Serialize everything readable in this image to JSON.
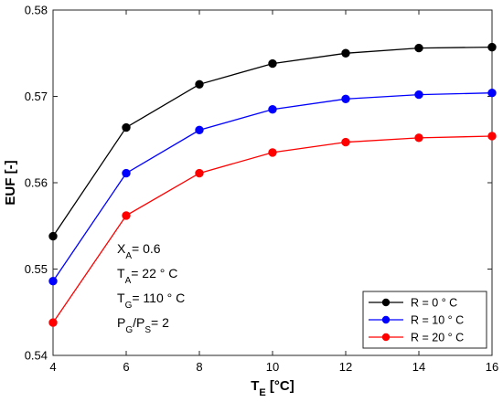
{
  "chart_data": {
    "type": "line",
    "x": [
      4,
      6,
      8,
      10,
      12,
      14,
      16
    ],
    "xlim": [
      4,
      16
    ],
    "ylim": [
      0.54,
      0.58
    ],
    "xticks": [
      "4",
      "6",
      "8",
      "10",
      "12",
      "14",
      "16"
    ],
    "yticks": [
      "0.54",
      "0.55",
      "0.56",
      "0.57",
      "0.58"
    ],
    "xlabel": {
      "main": "T",
      "sub": "E",
      "rest": " [°C]"
    },
    "ylabel": "EUF [-]",
    "grid": false,
    "legend_position": "bottom-right",
    "series": [
      {
        "name": "R = 0 ° C",
        "color": "#000000",
        "values": [
          0.5538,
          0.5664,
          0.5714,
          0.5738,
          0.575,
          0.5756,
          0.5757
        ]
      },
      {
        "name": "R = 10 ° C",
        "color": "#0000ff",
        "values": [
          0.5486,
          0.5611,
          0.5661,
          0.5685,
          0.5697,
          0.5702,
          0.5704
        ]
      },
      {
        "name": "R = 20 ° C",
        "color": "#ff0000",
        "values": [
          0.5438,
          0.5562,
          0.5611,
          0.5635,
          0.5647,
          0.5652,
          0.5654
        ]
      }
    ],
    "annotations": [
      {
        "main": "X",
        "sub": "A",
        "rest": "= 0.6"
      },
      {
        "main": "T",
        "sub": "A",
        "rest": "= 22 ° C"
      },
      {
        "main": "T",
        "sub": "G",
        "rest": "= 110 ° C"
      },
      {
        "main": "P",
        "sub": "G",
        "mid": "/P",
        "sub2": "S",
        "rest": "= 2"
      }
    ]
  }
}
